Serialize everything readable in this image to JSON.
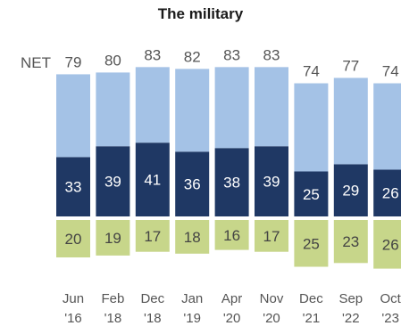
{
  "chart_data": {
    "type": "bar",
    "title": "The military",
    "net_label": "NET",
    "categories": [
      [
        "Jun",
        "'16"
      ],
      [
        "Feb",
        "'18"
      ],
      [
        "Dec",
        "'18"
      ],
      [
        "Jan",
        "'19"
      ],
      [
        "Apr",
        "'20"
      ],
      [
        "Nov",
        "'20"
      ],
      [
        "Dec",
        "'21"
      ],
      [
        "Sep",
        "'22"
      ],
      [
        "Oct",
        "'23"
      ]
    ],
    "net": [
      79,
      80,
      83,
      82,
      83,
      83,
      74,
      77,
      74
    ],
    "series": [
      {
        "values": [
          33,
          39,
          41,
          36,
          38,
          39,
          25,
          29,
          26
        ],
        "color": "#1f3864"
      },
      {
        "values": [
          46,
          41,
          42,
          46,
          45,
          44,
          49,
          48,
          48
        ],
        "color": "#a4c2e6"
      },
      {
        "values": [
          20,
          19,
          17,
          18,
          16,
          17,
          25,
          23,
          26
        ],
        "color": "#c7d68a"
      }
    ],
    "grid": false,
    "legend": "none"
  }
}
